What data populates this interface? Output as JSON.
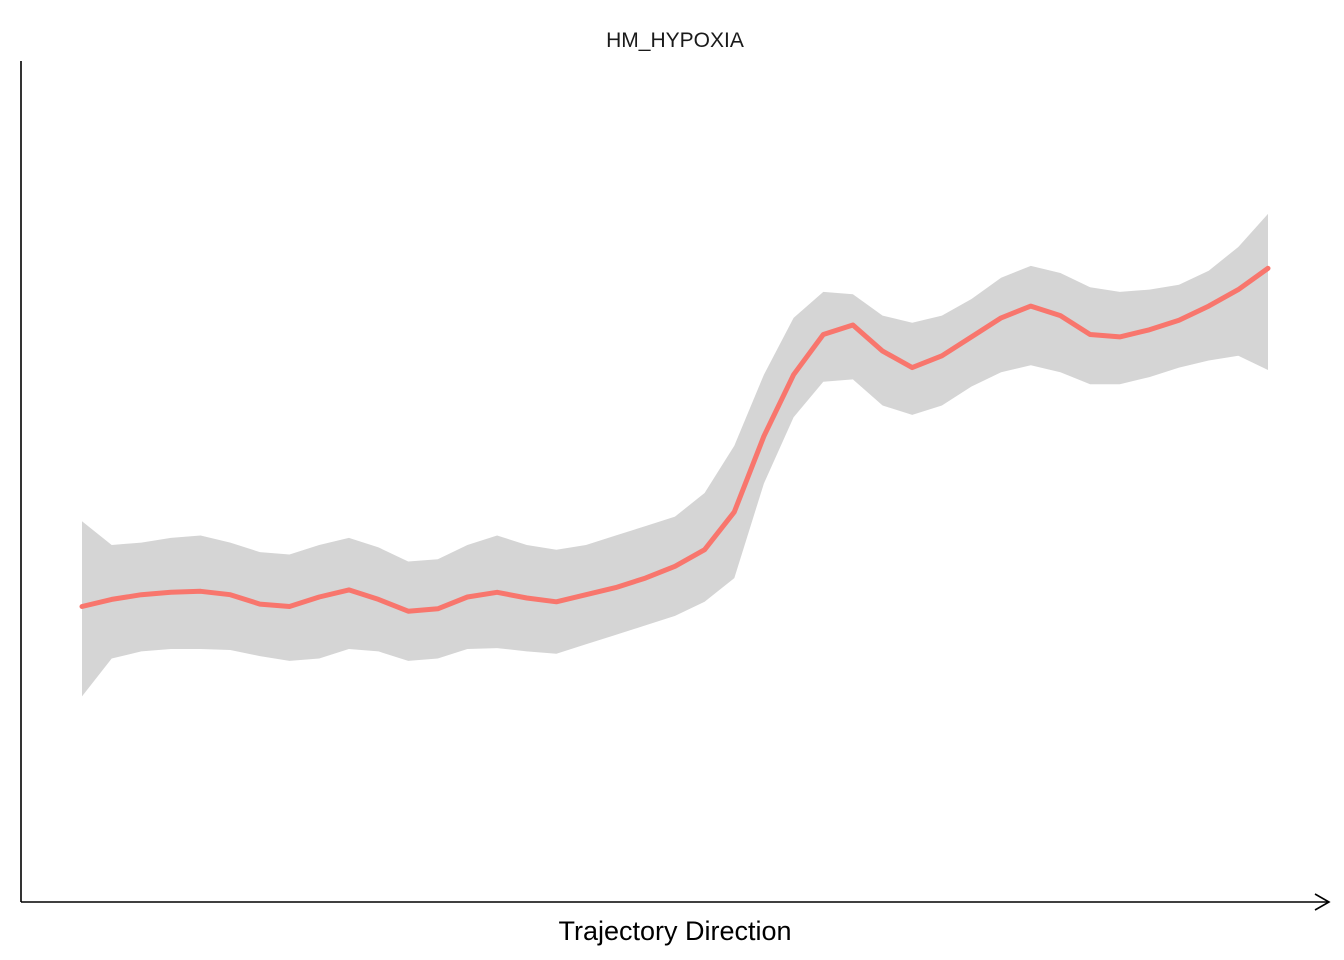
{
  "chart_data": {
    "type": "line",
    "title": "HM_HYPOXIA",
    "xlabel": "Trajectory Direction",
    "ylabel": "",
    "xlim": [
      0,
      1
    ],
    "ylim": [
      0,
      1
    ],
    "grid": false,
    "legend": "none",
    "colors": {
      "line": "#F8766D",
      "ribbon": "#D5D5D5",
      "axis": "#000000"
    },
    "series": [
      {
        "x": [
          0,
          0.025,
          0.05,
          0.075,
          0.1,
          0.125,
          0.15,
          0.175,
          0.2,
          0.225,
          0.25,
          0.275,
          0.3,
          0.325,
          0.35,
          0.375,
          0.4,
          0.425,
          0.45,
          0.475,
          0.5,
          0.525,
          0.55,
          0.575,
          0.6,
          0.625,
          0.65,
          0.675,
          0.7,
          0.725,
          0.75,
          0.775,
          0.8,
          0.825,
          0.85,
          0.875,
          0.9,
          0.925,
          0.95,
          0.975,
          1
        ],
        "y": [
          0.24,
          0.255,
          0.265,
          0.27,
          0.272,
          0.265,
          0.245,
          0.24,
          0.26,
          0.275,
          0.255,
          0.23,
          0.235,
          0.26,
          0.27,
          0.258,
          0.25,
          0.265,
          0.28,
          0.3,
          0.325,
          0.36,
          0.44,
          0.6,
          0.73,
          0.815,
          0.835,
          0.78,
          0.745,
          0.77,
          0.81,
          0.85,
          0.875,
          0.855,
          0.815,
          0.81,
          0.825,
          0.845,
          0.875,
          0.91,
          0.955
        ],
        "lower": [
          0.05,
          0.13,
          0.145,
          0.15,
          0.15,
          0.148,
          0.135,
          0.125,
          0.13,
          0.15,
          0.145,
          0.125,
          0.13,
          0.15,
          0.152,
          0.145,
          0.14,
          0.16,
          0.18,
          0.2,
          0.22,
          0.25,
          0.3,
          0.5,
          0.64,
          0.715,
          0.72,
          0.665,
          0.645,
          0.665,
          0.705,
          0.735,
          0.75,
          0.735,
          0.71,
          0.71,
          0.725,
          0.745,
          0.76,
          0.77,
          0.74
        ],
        "upper": [
          0.42,
          0.37,
          0.375,
          0.385,
          0.39,
          0.375,
          0.355,
          0.35,
          0.37,
          0.385,
          0.365,
          0.335,
          0.34,
          0.37,
          0.39,
          0.37,
          0.36,
          0.37,
          0.39,
          0.41,
          0.43,
          0.48,
          0.58,
          0.73,
          0.85,
          0.905,
          0.9,
          0.855,
          0.84,
          0.855,
          0.89,
          0.935,
          0.96,
          0.945,
          0.915,
          0.905,
          0.91,
          0.92,
          0.95,
          1.0,
          1.07
        ]
      }
    ]
  }
}
